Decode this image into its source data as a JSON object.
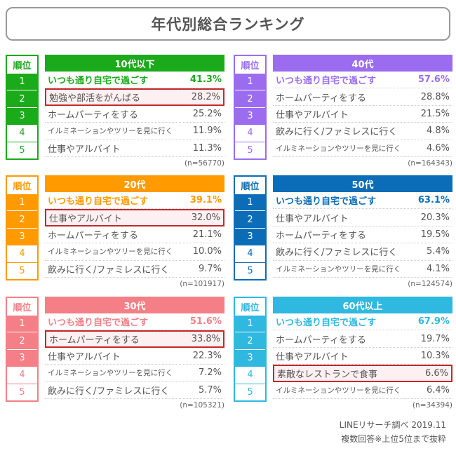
{
  "title": "年代別総合ランキング",
  "rank_header": "順位",
  "panels": [
    {
      "age": "10代以下",
      "color": "#1aaa1a",
      "n": "(n=56770)",
      "highlight": 2,
      "items": [
        {
          "rank": "1",
          "label": "いつも通り自宅で過ごす",
          "pct": "41.3%"
        },
        {
          "rank": "2",
          "label": "勉強や部活をがんばる",
          "pct": "28.2%"
        },
        {
          "rank": "3",
          "label": "ホームパーティをする",
          "pct": "25.2%"
        },
        {
          "rank": "4",
          "label": "イルミネーションやツリーを見に行く",
          "pct": "11.9%"
        },
        {
          "rank": "5",
          "label": "仕事やアルバイト",
          "pct": "11.3%"
        }
      ]
    },
    {
      "age": "40代",
      "color": "#9b6cf0",
      "n": "(n=164343)",
      "highlight": 0,
      "items": [
        {
          "rank": "1",
          "label": "いつも通り自宅で過ごす",
          "pct": "57.6%"
        },
        {
          "rank": "2",
          "label": "ホームパーティをする",
          "pct": "28.8%"
        },
        {
          "rank": "3",
          "label": "仕事やアルバイト",
          "pct": "21.5%"
        },
        {
          "rank": "4",
          "label": "飲みに行く/ファミレスに行く",
          "pct": "4.8%"
        },
        {
          "rank": "5",
          "label": "イルミネーションやツリーを見に行く",
          "pct": "4.6%"
        }
      ]
    },
    {
      "age": "20代",
      "color": "#ff9a00",
      "n": "(n=101917)",
      "highlight": 2,
      "items": [
        {
          "rank": "1",
          "label": "いつも通り自宅で過ごす",
          "pct": "39.1%"
        },
        {
          "rank": "2",
          "label": "仕事やアルバイト",
          "pct": "32.0%"
        },
        {
          "rank": "3",
          "label": "ホームパーティをする",
          "pct": "21.1%"
        },
        {
          "rank": "4",
          "label": "イルミネーションやツリーを見に行く",
          "pct": "10.0%"
        },
        {
          "rank": "5",
          "label": "飲みに行く/ファミレスに行く",
          "pct": "9.7%"
        }
      ]
    },
    {
      "age": "50代",
      "color": "#0b6db7",
      "n": "(n=124574)",
      "highlight": 0,
      "items": [
        {
          "rank": "1",
          "label": "いつも通り自宅で過ごす",
          "pct": "63.1%"
        },
        {
          "rank": "2",
          "label": "仕事やアルバイト",
          "pct": "20.3%"
        },
        {
          "rank": "3",
          "label": "ホームパーティをする",
          "pct": "19.5%"
        },
        {
          "rank": "4",
          "label": "飲みに行く/ファミレスに行く",
          "pct": "5.4%"
        },
        {
          "rank": "5",
          "label": "イルミネーションやツリーを見に行く",
          "pct": "4.1%"
        }
      ]
    },
    {
      "age": "30代",
      "color": "#f47f86",
      "n": "(n=105321)",
      "highlight": 2,
      "items": [
        {
          "rank": "1",
          "label": "いつも通り自宅で過ごす",
          "pct": "51.6%"
        },
        {
          "rank": "2",
          "label": "ホームパーティをする",
          "pct": "33.8%"
        },
        {
          "rank": "3",
          "label": "仕事やアルバイト",
          "pct": "22.3%"
        },
        {
          "rank": "4",
          "label": "イルミネーションやツリーを見に行く",
          "pct": "7.2%"
        },
        {
          "rank": "5",
          "label": "飲みに行く/ファミレスに行く",
          "pct": "5.7%"
        }
      ]
    },
    {
      "age": "60代以上",
      "color": "#2fb8e0",
      "n": "(n=34394)",
      "highlight": 4,
      "items": [
        {
          "rank": "1",
          "label": "いつも通り自宅で過ごす",
          "pct": "67.9%"
        },
        {
          "rank": "2",
          "label": "ホームパーティをする",
          "pct": "19.7%"
        },
        {
          "rank": "3",
          "label": "仕事やアルバイト",
          "pct": "10.3%"
        },
        {
          "rank": "4",
          "label": "素敵なレストランで食事",
          "pct": "6.6%"
        },
        {
          "rank": "5",
          "label": "イルミネーションやツリーを見に行く",
          "pct": "6.4%"
        }
      ]
    }
  ],
  "footer": {
    "source": "LINEリサーチ調べ 2019.11",
    "note": "複数回答※上位5位まで抜粋"
  }
}
